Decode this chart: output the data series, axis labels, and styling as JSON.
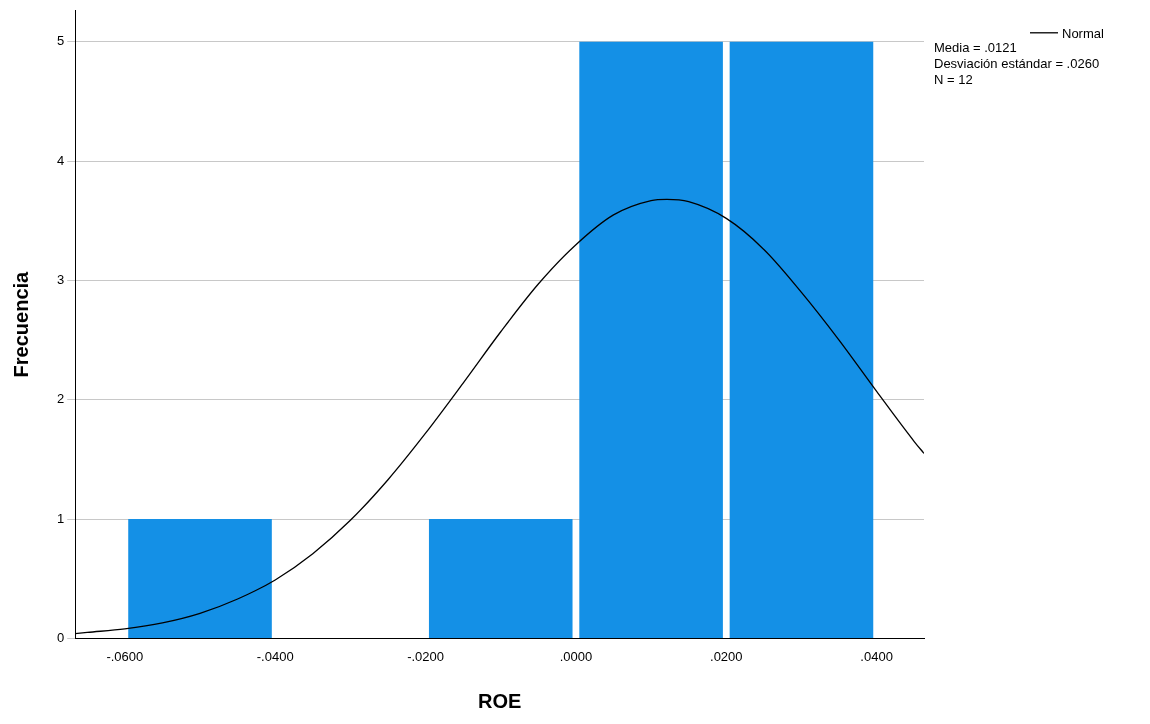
{
  "chart_data": {
    "type": "histogram",
    "xlabel": "ROE",
    "ylabel": "Frecuencia",
    "bins": [
      -0.06,
      -0.04,
      -0.02,
      0,
      0.02,
      0.04
    ],
    "values": [
      1,
      0,
      1,
      5,
      5
    ],
    "color": "#1490e6",
    "series": [
      {
        "name": "Normal",
        "type": "line",
        "color": "#000000",
        "x": [
          -0.0666,
          -0.065,
          -0.06,
          -0.055,
          -0.05,
          -0.045,
          -0.04,
          -0.035,
          -0.03,
          -0.025,
          -0.02,
          -0.015,
          -0.01,
          -0.005,
          0,
          0.005,
          0.01,
          0.0121,
          0.015,
          0.02,
          0.025,
          0.03,
          0.035,
          0.04,
          0.045,
          0.0463
        ],
        "values": [
          0.04,
          0.05,
          0.08,
          0.13,
          0.21,
          0.33,
          0.49,
          0.71,
          0.99,
          1.33,
          1.72,
          2.14,
          2.57,
          2.97,
          3.3,
          3.55,
          3.67,
          3.68,
          3.66,
          3.52,
          3.26,
          2.9,
          2.5,
          2.07,
          1.65,
          1.55
        ]
      }
    ],
    "annotations": [
      "Media = .0121",
      "Desviación estándar = .0260",
      "N = 12"
    ],
    "xlim": [
      -0.0666,
      0.0463
    ],
    "ylim": [
      0,
      5.26
    ],
    "xticks": [
      {
        "value": -0.06,
        "label": "-.0600"
      },
      {
        "value": -0.04,
        "label": "-.0400"
      },
      {
        "value": -0.02,
        "label": "-.0200"
      },
      {
        "value": 0,
        "label": ".0000"
      },
      {
        "value": 0.02,
        "label": ".0200"
      },
      {
        "value": 0.04,
        "label": ".0400"
      }
    ],
    "yticks": [
      0,
      1,
      2,
      3,
      4,
      5
    ],
    "grid": "y",
    "legend": "top right",
    "marker": "none",
    "line_style": "solid"
  }
}
